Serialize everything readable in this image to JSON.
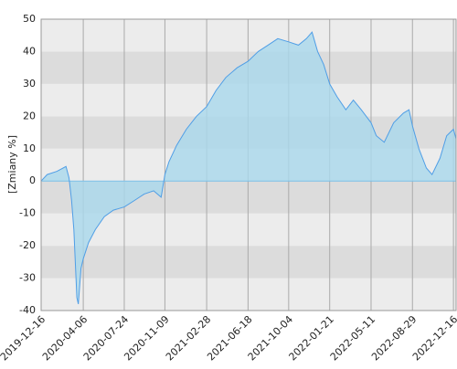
{
  "chart_data": {
    "type": "area",
    "y_label": "[Zmiany %]",
    "x": [
      "2019-12-16",
      "2020-01-01",
      "2020-01-27",
      "2020-02-20",
      "2020-02-28",
      "2020-03-06",
      "2020-03-12",
      "2020-03-20",
      "2020-03-24",
      "2020-03-31",
      "2020-04-06",
      "2020-04-20",
      "2020-05-08",
      "2020-06-01",
      "2020-06-25",
      "2020-07-24",
      "2020-08-20",
      "2020-09-15",
      "2020-10-10",
      "2020-10-30",
      "2020-11-09",
      "2020-11-20",
      "2020-12-10",
      "2021-01-05",
      "2021-02-01",
      "2021-02-28",
      "2021-03-25",
      "2021-04-20",
      "2021-05-20",
      "2021-06-18",
      "2021-07-15",
      "2021-08-10",
      "2021-09-05",
      "2021-10-04",
      "2021-10-30",
      "2021-11-20",
      "2021-12-05",
      "2021-12-20",
      "2022-01-05",
      "2022-01-21",
      "2022-02-10",
      "2022-03-05",
      "2022-03-25",
      "2022-04-15",
      "2022-05-11",
      "2022-05-25",
      "2022-06-15",
      "2022-07-10",
      "2022-08-05",
      "2022-08-20",
      "2022-08-29",
      "2022-09-15",
      "2022-10-05",
      "2022-10-20",
      "2022-11-10",
      "2022-11-28",
      "2022-12-16",
      "2022-12-23"
    ],
    "values": [
      0,
      2,
      3,
      4.5,
      1,
      -6,
      -15,
      -36,
      -38,
      -27,
      -24,
      -19,
      -15,
      -11,
      -9,
      -8,
      -6,
      -4,
      -3,
      -5,
      2,
      6,
      11,
      16,
      20,
      23,
      28,
      32,
      35,
      37,
      40,
      42,
      44,
      43,
      42,
      44,
      46,
      40,
      36,
      30,
      26,
      22,
      25,
      22,
      18,
      14,
      12,
      18,
      21,
      22,
      17,
      10,
      4,
      2,
      7,
      14,
      16,
      13
    ],
    "color": "#4f9ee6",
    "fill": "#a9d8ec",
    "xlim": [
      "2019-12-16",
      "2022-12-23"
    ],
    "xticks": [
      "2019-12-16",
      "2020-04-06",
      "2020-07-24",
      "2020-11-09",
      "2021-02-28",
      "2021-06-18",
      "2021-10-04",
      "2022-01-21",
      "2022-05-11",
      "2022-08-29",
      "2022-12-16"
    ],
    "ylim": [
      -40,
      50
    ],
    "yticks": [
      -40,
      -30,
      -20,
      -10,
      0,
      10,
      20,
      30,
      40,
      50
    ],
    "grid": true
  }
}
